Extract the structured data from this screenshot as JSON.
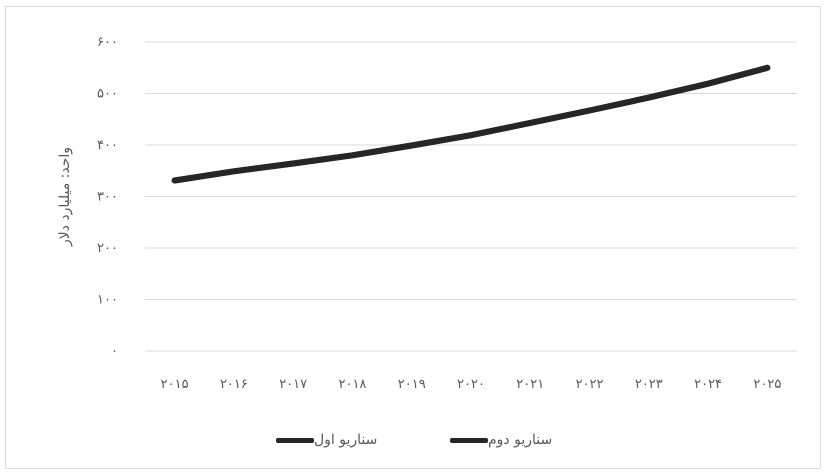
{
  "chart_data": {
    "type": "line",
    "title": "",
    "ylabel": "واحد: میلیارد دلار",
    "xlabel": "",
    "ylim": [
      0,
      600
    ],
    "yticks": [
      0,
      100,
      200,
      300,
      400,
      500,
      600
    ],
    "ytick_labels": [
      "۰",
      "۱۰۰",
      "۲۰۰",
      "۳۰۰",
      "۴۰۰",
      "۵۰۰",
      "۶۰۰"
    ],
    "x": [
      2015,
      2016,
      2017,
      2018,
      2019,
      2020,
      2021,
      2022,
      2023,
      2024,
      2025
    ],
    "xtick_labels": [
      "۲۰۱۵",
      "۲۰۱۶",
      "۲۰۱۷",
      "۲۰۱۸",
      "۲۰۱۹",
      "۲۰۲۰",
      "۲۰۲۱",
      "۲۰۲۲",
      "۲۰۲۳",
      "۲۰۲۴",
      "۲۰۲۵"
    ],
    "series": [
      {
        "name": "سناریو اول",
        "color": "#262626",
        "values": [
          331,
          349,
          364,
          380,
          399,
          419,
          443,
          467,
          492,
          519,
          550
        ]
      },
      {
        "name": "سناریو دوم",
        "color": "#262626",
        "values": [
          331,
          349,
          364,
          380,
          399,
          419,
          443,
          467,
          492,
          519,
          550
        ]
      }
    ],
    "grid": true,
    "legend": "bottom"
  }
}
